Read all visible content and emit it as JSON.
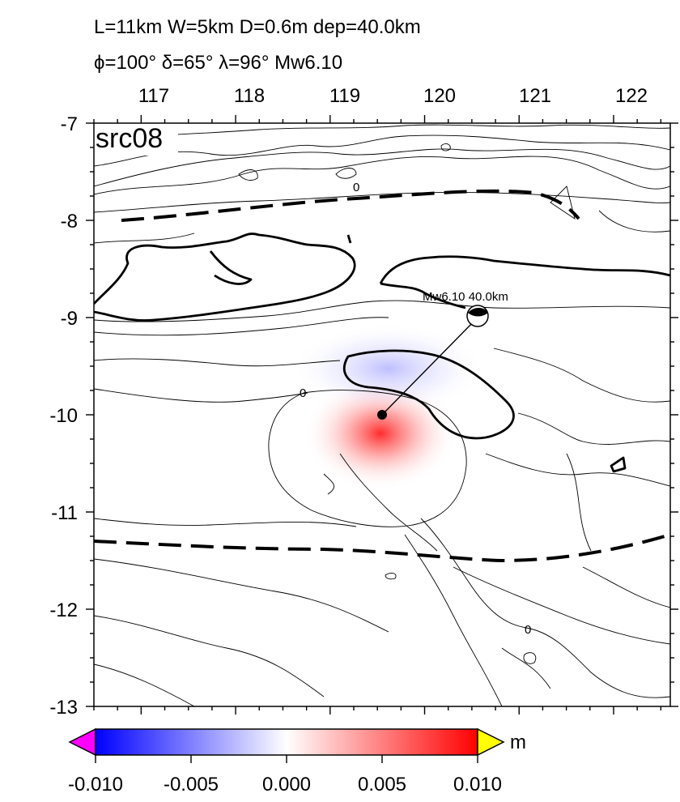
{
  "header": {
    "line1": "L=11km W=5km D=0.6m dep=40.0km",
    "line2": "ϕ=100° δ=65° λ=96° Mw6.10"
  },
  "map": {
    "panel_label": "src08",
    "lon_range": [
      116.5,
      122.6
    ],
    "lat_range": [
      -13,
      -7
    ],
    "lon_ticks": [
      "117",
      "118",
      "119",
      "120",
      "121",
      "122"
    ],
    "lat_ticks": [
      "-7",
      "-8",
      "-9",
      "-10",
      "-11",
      "-12",
      "-13"
    ],
    "contour_labels": [
      "0",
      "0",
      "0"
    ],
    "epicenter": {
      "lon": 119.4,
      "lat": -10.0
    },
    "beachball": {
      "lon": 120.4,
      "lat": -9.0,
      "label": "Mw6.10 40.0km"
    },
    "colors": {
      "uplift": "#ff0000",
      "subsidence": "#0000ff",
      "coast": "#000000"
    }
  },
  "colorbar": {
    "unit": "m",
    "range": [
      -0.01,
      0.01
    ],
    "tick_labels": [
      "-0.010",
      "-0.005",
      "0.000",
      "0.005",
      "0.010"
    ],
    "colors": {
      "low": "#0000ff",
      "mid": "#ffffff",
      "high": "#ff0000",
      "under": "#ff00ff",
      "over": "#ffff00"
    }
  }
}
